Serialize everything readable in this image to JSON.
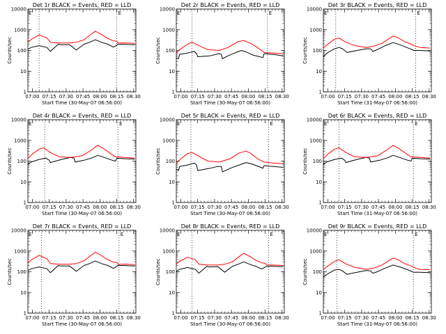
{
  "chart_data": [
    {
      "type": "line",
      "title": "Det 1r BLACK = Events, RED = LLD",
      "xlabel": "Start Time (30-May-07 06:56:00)",
      "ylabel": "Counts/sec",
      "xticks": [
        "07:00",
        "07:15",
        "07:30",
        "07:45",
        "08:00",
        "08:15",
        "08:30"
      ],
      "yticks": [
        "1",
        "10",
        "100",
        "1000",
        "10000"
      ],
      "yscale": "log",
      "ylim": [
        1,
        10000
      ],
      "xlim_minutes": [
        0,
        96
      ],
      "markers": [
        "E",
        "E"
      ],
      "vlines_minutes": [
        10,
        79
      ],
      "series": [
        {
          "color": "#000000",
          "x": [
            0,
            3,
            10,
            17,
            20,
            27,
            29,
            37,
            43,
            50,
            55,
            60,
            66,
            71,
            76,
            79,
            80,
            86,
            89,
            95
          ],
          "y": [
            115,
            140,
            170,
            140,
            90,
            200,
            190,
            190,
            105,
            200,
            250,
            330,
            240,
            200,
            145,
            180,
            200,
            200,
            195,
            190
          ]
        },
        {
          "color": "#ff0000",
          "x": [
            0,
            3,
            10,
            17,
            20,
            27,
            37,
            43,
            50,
            55,
            60,
            66,
            71,
            76,
            79,
            80,
            86,
            95
          ],
          "y": [
            250,
            340,
            560,
            400,
            250,
            230,
            230,
            250,
            330,
            550,
            850,
            560,
            380,
            290,
            280,
            230,
            230,
            220
          ]
        }
      ]
    },
    {
      "type": "line",
      "title": "Det 2r BLACK = Events, RED = LLD",
      "xlabel": "Start Time (30-May-07 06:56:00)",
      "ylabel": "Counts/sec",
      "xticks": [
        "07:00",
        "07:15",
        "07:30",
        "07:45",
        "08:00",
        "08:15",
        "08:30"
      ],
      "yticks": [
        "1",
        "10",
        "100",
        "1000",
        "10000"
      ],
      "yscale": "log",
      "ylim": [
        1,
        10000
      ],
      "xlim_minutes": [
        0,
        96
      ],
      "markers": [
        "E",
        "E"
      ],
      "vlines_minutes": [
        14,
        81
      ],
      "series": [
        {
          "color": "#000000",
          "x": [
            0,
            2,
            3,
            10,
            16,
            18,
            19,
            30,
            38,
            40,
            41,
            46,
            53,
            58,
            62,
            68,
            74,
            77,
            78,
            86,
            90,
            95
          ],
          "y": [
            42,
            40,
            65,
            75,
            90,
            70,
            50,
            55,
            70,
            65,
            40,
            55,
            80,
            100,
            85,
            60,
            50,
            45,
            70,
            65,
            60,
            55
          ]
        },
        {
          "color": "#ff0000",
          "x": [
            0,
            3,
            10,
            14,
            20,
            28,
            38,
            46,
            55,
            60,
            66,
            72,
            78,
            86,
            95
          ],
          "y": [
            80,
            110,
            200,
            250,
            170,
            110,
            100,
            140,
            270,
            300,
            220,
            140,
            80,
            75,
            70
          ]
        }
      ]
    },
    {
      "type": "line",
      "title": "Det 3r BLACK = Events, RED = LLD",
      "xlabel": "Start Time (31-May-07 06:56:00)",
      "ylabel": "Counts/sec",
      "xticks": [
        "07:00",
        "07:15",
        "07:30",
        "07:45",
        "08:00",
        "08:15",
        "08:30"
      ],
      "yticks": [
        "1",
        "10",
        "100",
        "1000",
        "10000"
      ],
      "yscale": "log",
      "ylim": [
        1,
        10000
      ],
      "xlim_minutes": [
        0,
        96
      ],
      "markers": [
        "E",
        "E"
      ],
      "vlines_minutes": [
        11,
        82
      ],
      "series": [
        {
          "color": "#000000",
          "x": [
            0,
            4,
            10,
            14,
            17,
            19,
            21,
            30,
            38,
            42,
            44,
            48,
            55,
            62,
            68,
            74,
            79,
            80,
            86,
            95
          ],
          "y": [
            50,
            80,
            120,
            140,
            120,
            100,
            80,
            100,
            120,
            120,
            90,
            110,
            170,
            240,
            190,
            140,
            110,
            100,
            100,
            95
          ]
        },
        {
          "color": "#ff0000",
          "x": [
            0,
            4,
            10,
            14,
            20,
            28,
            38,
            45,
            52,
            62,
            66,
            72,
            78,
            82,
            86,
            95
          ],
          "y": [
            130,
            200,
            350,
            400,
            250,
            170,
            140,
            160,
            220,
            500,
            420,
            270,
            200,
            160,
            140,
            130
          ]
        }
      ]
    },
    {
      "type": "line",
      "title": "Det 4r BLACK = Events, RED = LLD",
      "xlabel": "Start Time (30-May-07 06:56:00)",
      "ylabel": "Counts/sec",
      "xticks": [
        "07:00",
        "07:15",
        "07:30",
        "07:45",
        "08:00",
        "08:15",
        "08:30"
      ],
      "yticks": [
        "1",
        "10",
        "100",
        "1000",
        "10000"
      ],
      "yscale": "log",
      "ylim": [
        1,
        10000
      ],
      "xlim_minutes": [
        0,
        96
      ],
      "markers": [
        "E",
        "E"
      ],
      "vlines_minutes": [
        15,
        80
      ],
      "series": [
        {
          "color": "#000000",
          "x": [
            0,
            3,
            10,
            16,
            19,
            20,
            30,
            38,
            41,
            42,
            50,
            58,
            62,
            68,
            75,
            78,
            79,
            86,
            95
          ],
          "y": [
            70,
            90,
            120,
            140,
            110,
            85,
            120,
            150,
            140,
            90,
            110,
            150,
            190,
            150,
            110,
            100,
            140,
            130,
            125
          ]
        },
        {
          "color": "#ff0000",
          "x": [
            0,
            4,
            10,
            14,
            20,
            28,
            38,
            48,
            56,
            62,
            68,
            74,
            78,
            86,
            95
          ],
          "y": [
            130,
            220,
            380,
            440,
            260,
            160,
            150,
            180,
            330,
            580,
            380,
            220,
            160,
            150,
            140
          ]
        }
      ]
    },
    {
      "type": "line",
      "title": "Det 5r BLACK = Events, RED = LLD",
      "xlabel": "Start Time (30-May-07 06:56:00)",
      "ylabel": "Counts/sec",
      "xticks": [
        "07:00",
        "07:15",
        "07:30",
        "07:45",
        "08:00",
        "08:15",
        "08:30"
      ],
      "yticks": [
        "1",
        "10",
        "100",
        "1000",
        "10000"
      ],
      "yscale": "log",
      "ylim": [
        1,
        10000
      ],
      "xlim_minutes": [
        0,
        96
      ],
      "markers": [
        "E",
        "E"
      ],
      "vlines_minutes": [
        13,
        82
      ],
      "series": [
        {
          "color": "#000000",
          "x": [
            0,
            2,
            3,
            10,
            16,
            18,
            19,
            30,
            37,
            40,
            41,
            48,
            56,
            62,
            68,
            75,
            77,
            78,
            86,
            95
          ],
          "y": [
            40,
            35,
            55,
            65,
            80,
            65,
            35,
            45,
            55,
            55,
            30,
            45,
            65,
            85,
            70,
            50,
            45,
            60,
            55,
            50
          ]
        },
        {
          "color": "#ff0000",
          "x": [
            0,
            4,
            10,
            14,
            20,
            28,
            38,
            48,
            56,
            62,
            66,
            72,
            78,
            86,
            95
          ],
          "y": [
            80,
            130,
            230,
            260,
            170,
            100,
            90,
            130,
            250,
            300,
            240,
            130,
            90,
            80,
            75
          ]
        }
      ]
    },
    {
      "type": "line",
      "title": "Det 6r BLACK = Events, RED = LLD",
      "xlabel": "Start Time (31-May-07 06:56:00)",
      "ylabel": "Counts/sec",
      "xticks": [
        "07:00",
        "07:15",
        "07:30",
        "07:45",
        "08:00",
        "08:15",
        "08:30"
      ],
      "yticks": [
        "1",
        "10",
        "100",
        "1000",
        "10000"
      ],
      "yscale": "log",
      "ylim": [
        1,
        10000
      ],
      "xlim_minutes": [
        0,
        96
      ],
      "markers": [
        "E",
        "E"
      ],
      "vlines_minutes": [
        14,
        80
      ],
      "series": [
        {
          "color": "#000000",
          "x": [
            0,
            3,
            10,
            16,
            19,
            20,
            30,
            38,
            41,
            42,
            50,
            58,
            62,
            68,
            75,
            78,
            79,
            86,
            95
          ],
          "y": [
            70,
            90,
            120,
            140,
            110,
            85,
            120,
            150,
            140,
            90,
            110,
            150,
            190,
            150,
            110,
            100,
            140,
            130,
            125
          ]
        },
        {
          "color": "#ff0000",
          "x": [
            0,
            4,
            10,
            14,
            20,
            28,
            38,
            48,
            56,
            62,
            68,
            74,
            78,
            86,
            95
          ],
          "y": [
            130,
            220,
            380,
            440,
            260,
            160,
            150,
            180,
            330,
            580,
            380,
            220,
            160,
            150,
            140
          ]
        }
      ]
    },
    {
      "type": "line",
      "title": "Det 7r BLACK = Events, RED = LLD",
      "xlabel": "Start Time (30-May-07 06:56:00)",
      "ylabel": "Counts/sec",
      "xticks": [
        "07:00",
        "07:15",
        "07:30",
        "07:45",
        "08:00",
        "08:15",
        "08:30"
      ],
      "yticks": [
        "1",
        "10",
        "100",
        "1000",
        "10000"
      ],
      "yscale": "log",
      "ylim": [
        1,
        10000
      ],
      "xlim_minutes": [
        0,
        96
      ],
      "markers": [
        "E",
        "E"
      ],
      "vlines_minutes": [
        12,
        81
      ],
      "series": [
        {
          "color": "#000000",
          "x": [
            0,
            3,
            10,
            17,
            20,
            27,
            29,
            37,
            43,
            50,
            55,
            60,
            66,
            71,
            76,
            79,
            80,
            86,
            89,
            95
          ],
          "y": [
            115,
            140,
            170,
            140,
            90,
            200,
            190,
            190,
            105,
            200,
            250,
            330,
            240,
            200,
            145,
            180,
            200,
            200,
            195,
            190
          ]
        },
        {
          "color": "#ff0000",
          "x": [
            0,
            3,
            10,
            17,
            20,
            27,
            37,
            43,
            50,
            55,
            60,
            66,
            71,
            76,
            79,
            80,
            86,
            95
          ],
          "y": [
            260,
            370,
            620,
            420,
            250,
            230,
            230,
            250,
            340,
            560,
            880,
            570,
            380,
            290,
            280,
            230,
            230,
            220
          ]
        }
      ]
    },
    {
      "type": "line",
      "title": "Det 8r BLACK = Events, RED = LLD",
      "xlabel": "Start Time (30-May-07 06:56:00)",
      "ylabel": "Counts/sec",
      "xticks": [
        "07:00",
        "07:15",
        "07:30",
        "07:45",
        "08:00",
        "08:15",
        "08:30"
      ],
      "yticks": [
        "1",
        "10",
        "100",
        "1000",
        "10000"
      ],
      "yscale": "log",
      "ylim": [
        1,
        10000
      ],
      "xlim_minutes": [
        0,
        96
      ],
      "markers": [
        "E",
        "E"
      ],
      "vlines_minutes": [
        14,
        82
      ],
      "series": [
        {
          "color": "#000000",
          "x": [
            0,
            3,
            10,
            17,
            20,
            27,
            29,
            37,
            43,
            50,
            55,
            60,
            66,
            71,
            76,
            79,
            80,
            86,
            89,
            95
          ],
          "y": [
            105,
            130,
            160,
            130,
            85,
            180,
            170,
            175,
            95,
            185,
            230,
            300,
            220,
            180,
            135,
            165,
            185,
            185,
            180,
            175
          ]
        },
        {
          "color": "#ff0000",
          "x": [
            0,
            3,
            10,
            17,
            20,
            27,
            37,
            43,
            50,
            55,
            60,
            66,
            71,
            76,
            79,
            80,
            86,
            95
          ],
          "y": [
            230,
            320,
            500,
            380,
            230,
            210,
            210,
            230,
            300,
            500,
            780,
            520,
            350,
            270,
            260,
            210,
            210,
            200
          ]
        }
      ]
    },
    {
      "type": "line",
      "title": "Det 9r BLACK = Events, RED = LLD",
      "xlabel": "Start Time (31-May-07 06:56:00)",
      "ylabel": "Counts/sec",
      "xticks": [
        "07:00",
        "07:15",
        "07:30",
        "07:45",
        "08:00",
        "08:15",
        "08:30"
      ],
      "yticks": [
        "1",
        "10",
        "100",
        "1000",
        "10000"
      ],
      "yscale": "log",
      "ylim": [
        1,
        10000
      ],
      "xlim_minutes": [
        0,
        96
      ],
      "markers": [
        "E",
        "E"
      ],
      "vlines_minutes": [
        12,
        80
      ],
      "series": [
        {
          "color": "#000000",
          "x": [
            0,
            4,
            10,
            14,
            17,
            19,
            21,
            30,
            38,
            42,
            44,
            48,
            55,
            62,
            68,
            74,
            79,
            80,
            86,
            95
          ],
          "y": [
            55,
            80,
            120,
            130,
            110,
            90,
            75,
            95,
            115,
            110,
            85,
            100,
            150,
            210,
            170,
            130,
            100,
            95,
            95,
            90
          ]
        },
        {
          "color": "#ff0000",
          "x": [
            0,
            4,
            10,
            14,
            20,
            28,
            38,
            45,
            52,
            62,
            66,
            72,
            78,
            82,
            86,
            95
          ],
          "y": [
            130,
            190,
            320,
            380,
            240,
            160,
            130,
            150,
            210,
            460,
            390,
            250,
            190,
            150,
            130,
            125
          ]
        }
      ]
    }
  ]
}
